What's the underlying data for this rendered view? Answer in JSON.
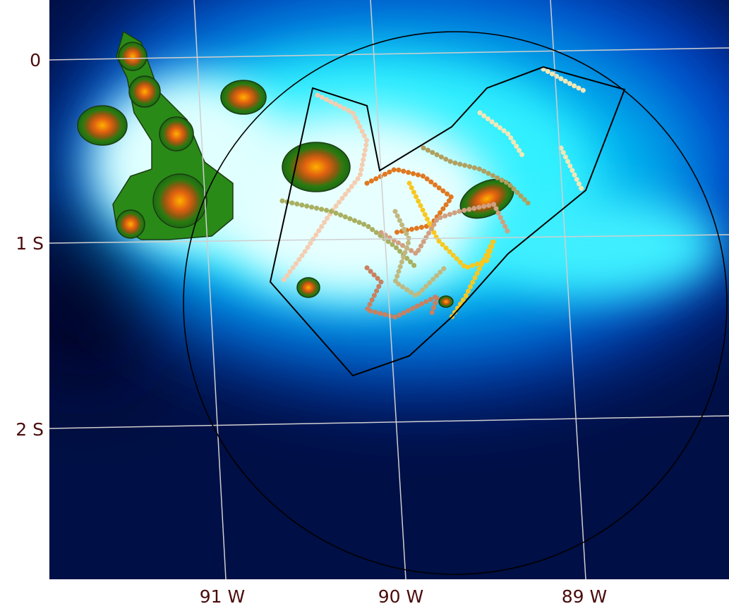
{
  "map": {
    "lat_labels": [
      "0",
      "1 S",
      "2 S"
    ],
    "lon_labels": [
      "91 W",
      "90 W",
      "89 W"
    ]
  }
}
